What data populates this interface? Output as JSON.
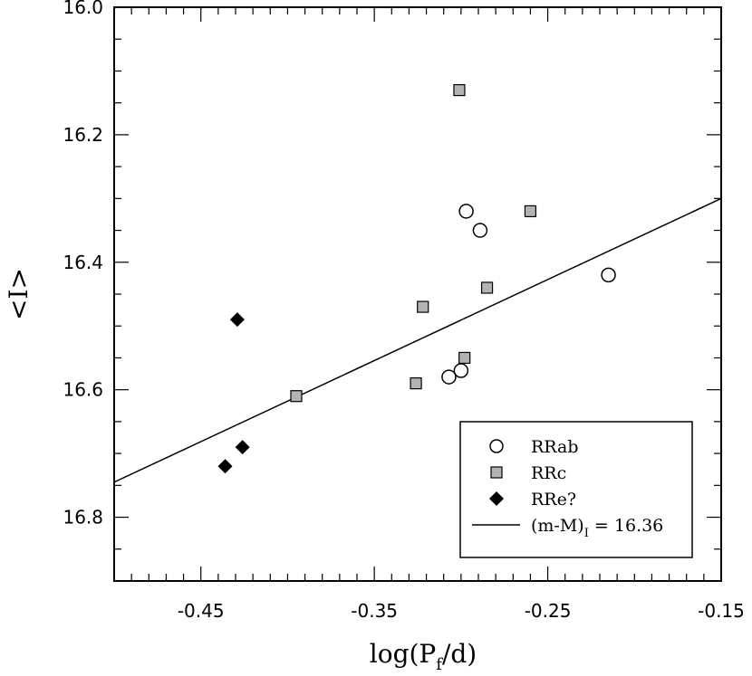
{
  "chart_data": {
    "type": "scatter",
    "xlabel": "log(P",
    "xlabel_sub": "f",
    "xlabel_tail": "/d)",
    "ylabel": "<I>",
    "xlim": [
      -0.5,
      -0.15
    ],
    "ylim": [
      16.9,
      16.0
    ],
    "y_inverted": true,
    "x_ticks": [
      -0.45,
      -0.35,
      -0.25,
      -0.15
    ],
    "x_tick_labels": [
      "-0.45",
      "-0.35",
      "-0.25",
      "-0.15"
    ],
    "y_ticks": [
      16.0,
      16.2,
      16.4,
      16.6,
      16.8
    ],
    "y_tick_labels": [
      "16.0",
      "16.2",
      "16.4",
      "16.6",
      "16.8"
    ],
    "grid": false,
    "legend_position": "bottom-right",
    "series": [
      {
        "name": "RRab",
        "marker": "circle-open",
        "points": [
          {
            "x": -0.297,
            "y": 16.32
          },
          {
            "x": -0.289,
            "y": 16.35
          },
          {
            "x": -0.215,
            "y": 16.42
          },
          {
            "x": -0.307,
            "y": 16.58
          },
          {
            "x": -0.3,
            "y": 16.57
          }
        ]
      },
      {
        "name": "RRc",
        "marker": "square-gray",
        "color": "#b3b3b3",
        "points": [
          {
            "x": -0.301,
            "y": 16.13
          },
          {
            "x": -0.26,
            "y": 16.32
          },
          {
            "x": -0.285,
            "y": 16.44
          },
          {
            "x": -0.322,
            "y": 16.47
          },
          {
            "x": -0.298,
            "y": 16.55
          },
          {
            "x": -0.326,
            "y": 16.59
          },
          {
            "x": -0.395,
            "y": 16.61
          }
        ]
      },
      {
        "name": "RRe?",
        "marker": "diamond-filled",
        "color": "#000000",
        "points": [
          {
            "x": -0.429,
            "y": 16.49
          },
          {
            "x": -0.426,
            "y": 16.69
          },
          {
            "x": -0.436,
            "y": 16.72
          }
        ]
      }
    ],
    "fit_line": {
      "name": "(m-M)",
      "name_sub": "I",
      "name_tail": " = 16.36",
      "x": [
        -0.5,
        -0.15
      ],
      "y": [
        16.745,
        16.3
      ]
    }
  }
}
